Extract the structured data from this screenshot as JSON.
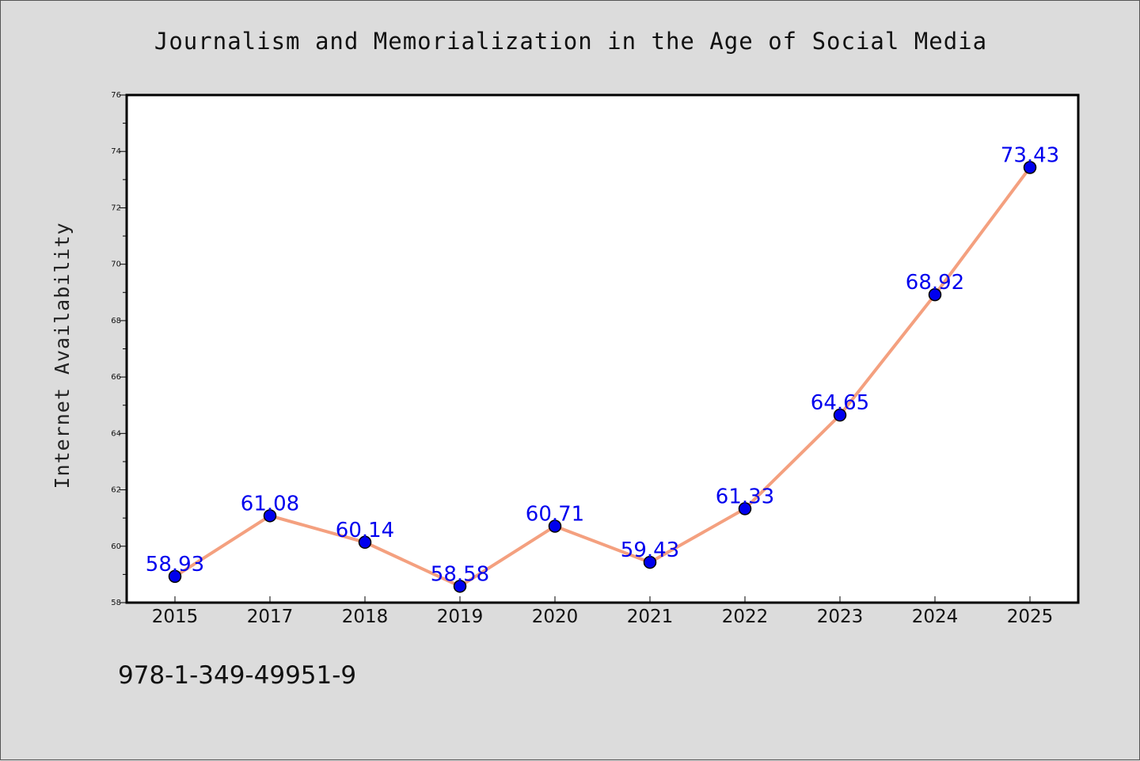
{
  "chart_data": {
    "type": "line",
    "title": "Journalism and Memorialization in the Age of Social Media",
    "xlabel": "",
    "ylabel": "Internet Availability",
    "categories": [
      "2015",
      "2017",
      "2018",
      "2019",
      "2020",
      "2021",
      "2022",
      "2023",
      "2024",
      "2025"
    ],
    "series": [
      {
        "values": [
          58.93,
          61.08,
          60.14,
          58.58,
          60.71,
          59.43,
          61.33,
          64.65,
          68.92,
          73.43
        ],
        "data_labels": [
          "58.93",
          "61.08",
          "60.14",
          "58.58",
          "60.71",
          "59.43",
          "61.33",
          "64.65",
          "68.92",
          "73.43"
        ]
      }
    ],
    "ylim": [
      58,
      76
    ],
    "yticks": [
      "58",
      "60",
      "62",
      "64",
      "66",
      "68",
      "70",
      "72",
      "74",
      "76"
    ],
    "grid": false,
    "legend": "none",
    "colors": {
      "line": "#f4a07f",
      "marker": "#0000ee",
      "label": "#0000ee",
      "background": "#dcdcdc",
      "plot_background": "#ffffff"
    }
  },
  "footer": {
    "isbn": "978-1-349-49951-9"
  }
}
